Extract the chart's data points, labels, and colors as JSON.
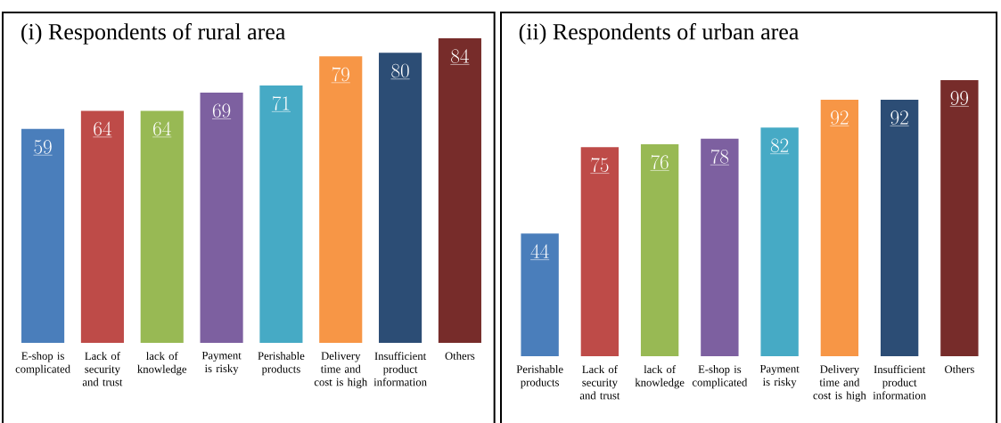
{
  "chart_data": [
    {
      "type": "bar",
      "title": "(i) Respondents of rural area",
      "categories": [
        "E-shop is complicated",
        "Lack of security and trust",
        "lack of knowledge",
        "Payment is risky",
        "Perishable products",
        "Delivery time and cost is high",
        "Insufficient product information",
        "Others"
      ],
      "values": [
        59,
        64,
        64,
        69,
        71,
        79,
        80,
        84
      ],
      "colors": [
        "#4a7ebb",
        "#be4b48",
        "#98b954",
        "#7d60a0",
        "#46aac5",
        "#f79646",
        "#2c4d75",
        "#772c2a"
      ],
      "data_labels": true
    },
    {
      "type": "bar",
      "title": "(ii) Respondents of urban area",
      "categories": [
        "Perishable products",
        "Lack of security and trust",
        "lack of knowledge",
        "E-shop is complicated",
        "Payment is risky",
        "Delivery time and cost is high",
        "Insufficient product information",
        "Others"
      ],
      "values": [
        44,
        75,
        76,
        78,
        82,
        92,
        92,
        99
      ],
      "colors": [
        "#4a7ebb",
        "#be4b48",
        "#98b954",
        "#7d60a0",
        "#46aac5",
        "#f79646",
        "#2c4d75",
        "#772c2a"
      ],
      "data_labels": true
    }
  ]
}
